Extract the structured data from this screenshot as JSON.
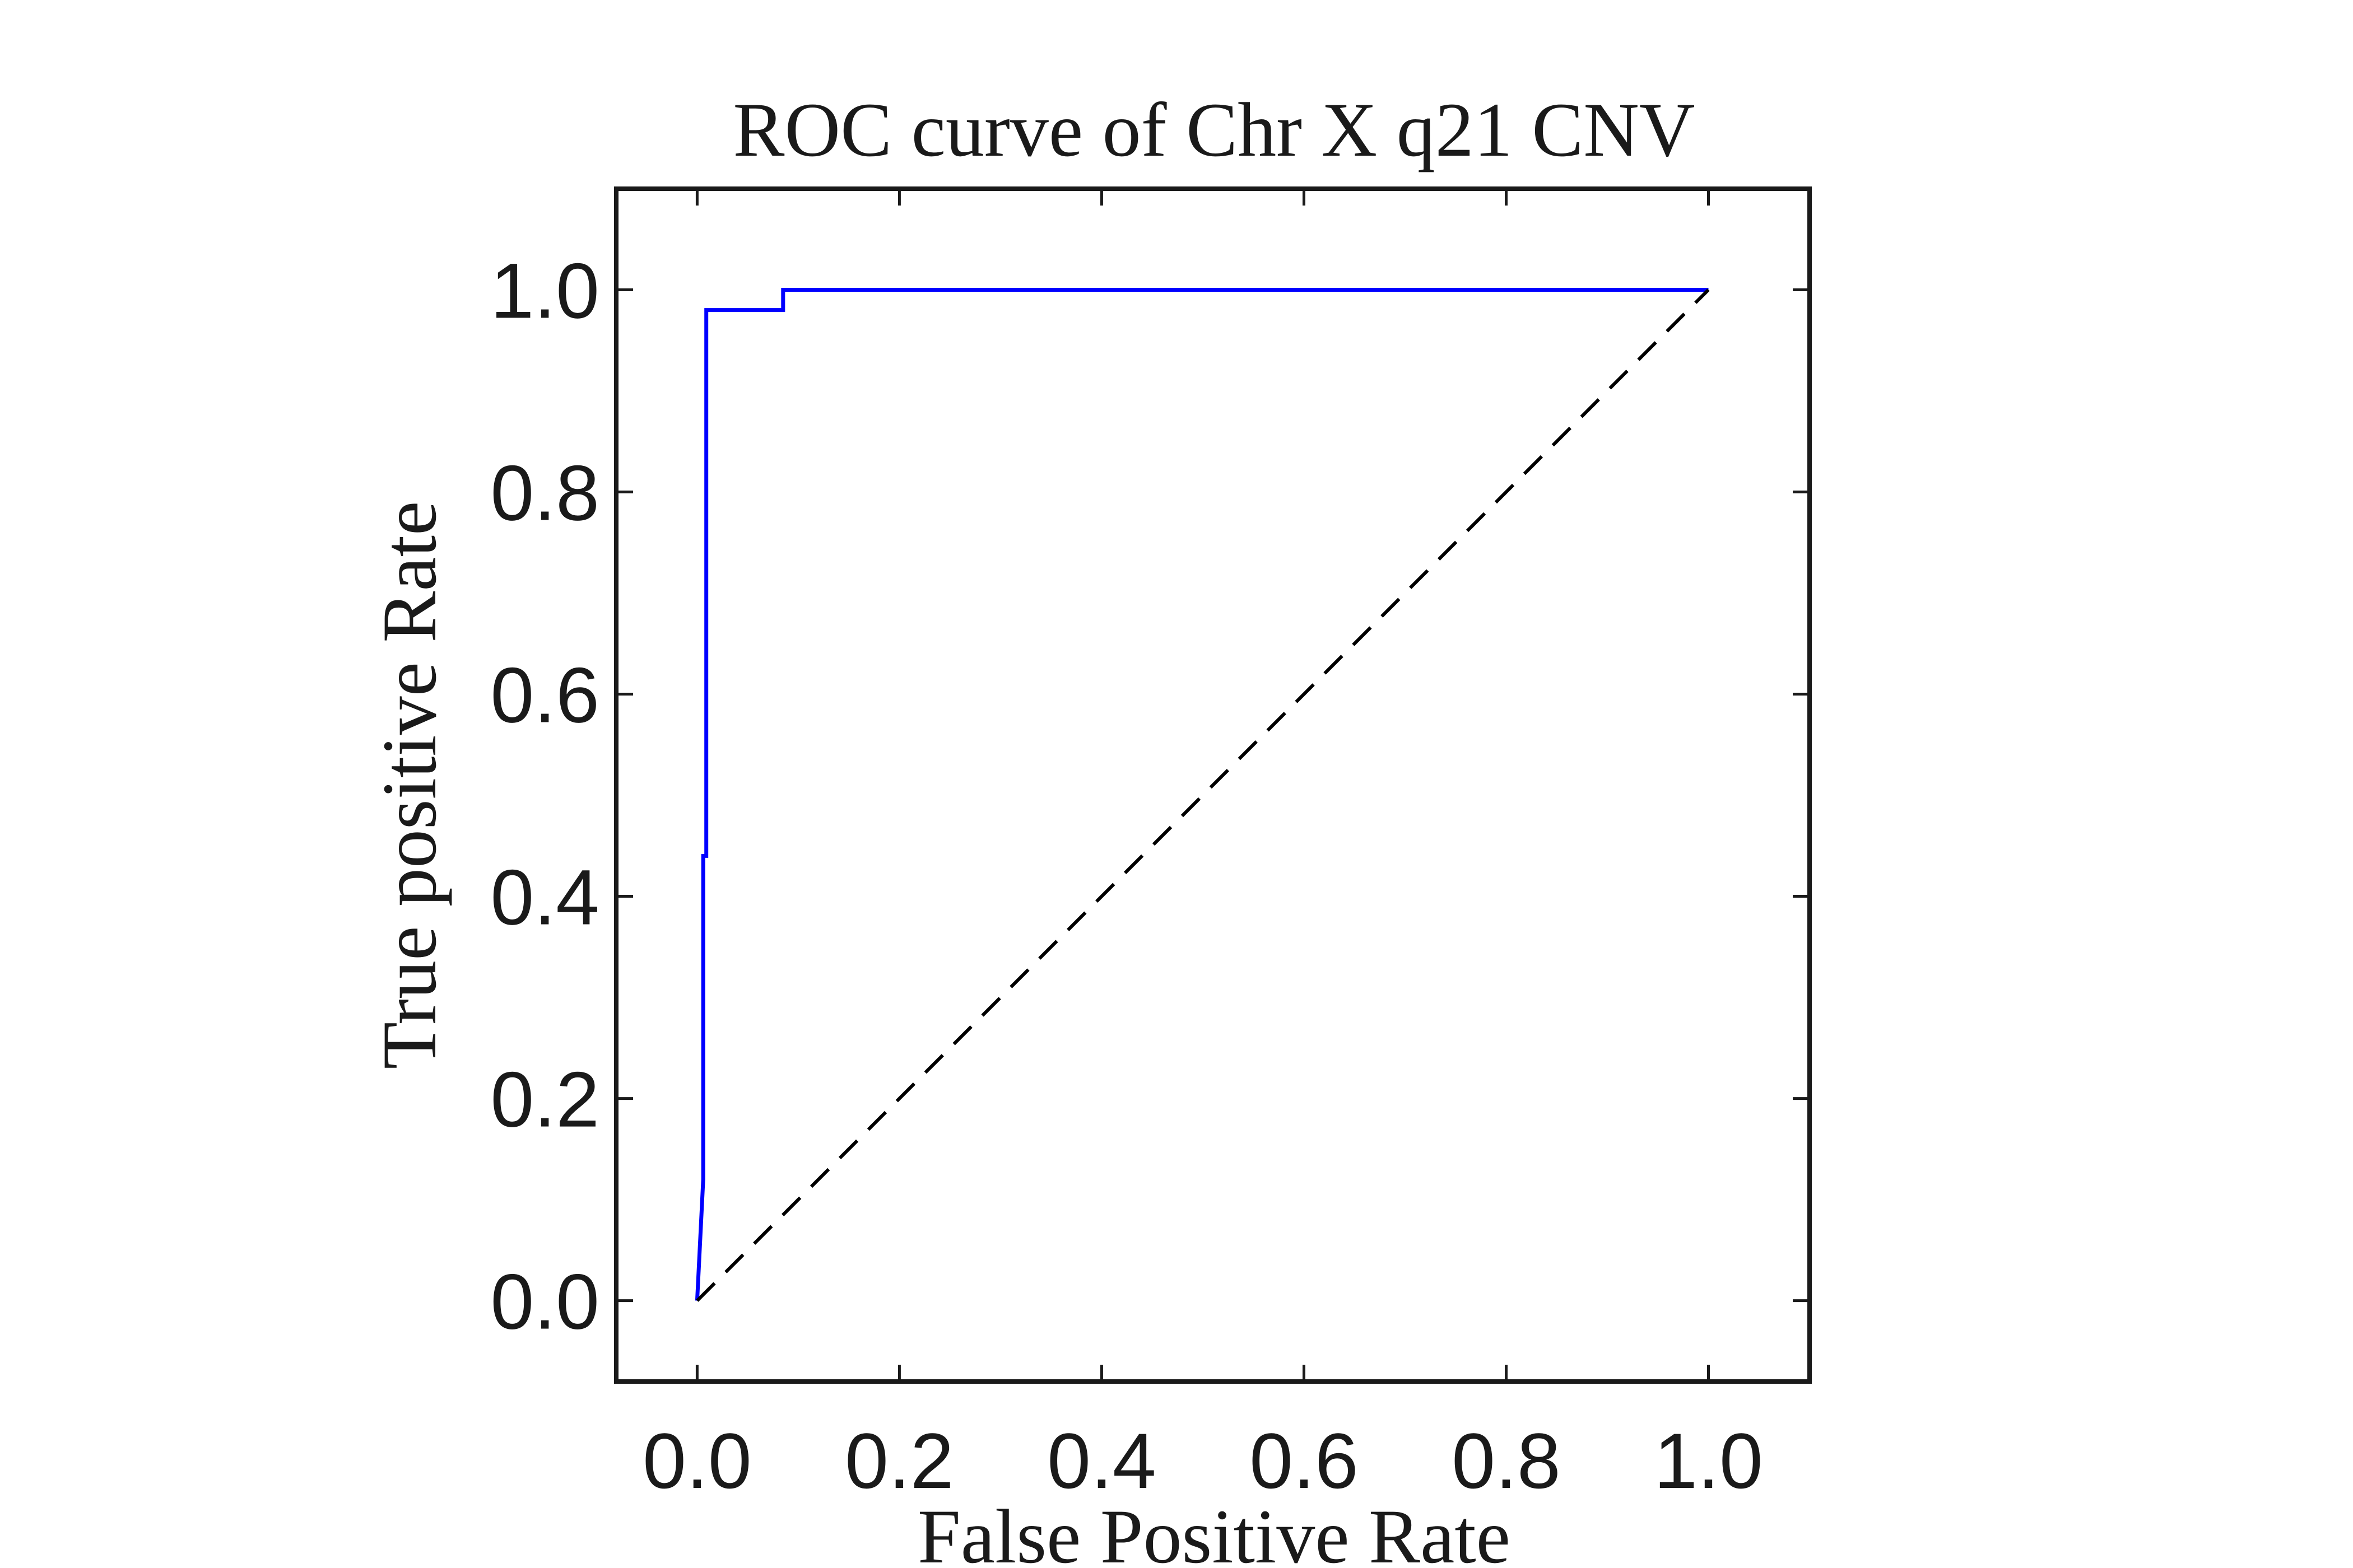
{
  "chart_data": {
    "type": "line",
    "title": "ROC curve of Chr X q21 CNV",
    "xlabel": "False Positive Rate",
    "ylabel": "True positive Rate",
    "xlim": [
      -0.08,
      1.1
    ],
    "ylim": [
      -0.08,
      1.1
    ],
    "x_ticks": [
      0.0,
      0.2,
      0.4,
      0.6,
      0.8,
      1.0
    ],
    "y_ticks": [
      0.0,
      0.2,
      0.4,
      0.6,
      0.8,
      1.0
    ],
    "x_tick_labels": [
      "0.0",
      "0.2",
      "0.4",
      "0.6",
      "0.8",
      "1.0"
    ],
    "y_tick_labels": [
      "0.0",
      "0.2",
      "0.4",
      "0.6",
      "0.8",
      "1.0"
    ],
    "grid": false,
    "legend": "none",
    "series": [
      {
        "style": "solid",
        "color": "#0000ff",
        "x": [
          0.0,
          0.006,
          0.006,
          0.009,
          0.009,
          0.012,
          0.085,
          0.085,
          1.0
        ],
        "y": [
          0.0,
          0.12,
          0.44,
          0.44,
          0.98,
          0.98,
          0.98,
          1.0,
          1.0
        ]
      },
      {
        "style": "dashed",
        "color": "#000000",
        "x": [
          0.0,
          1.0
        ],
        "y": [
          0.0,
          1.0
        ]
      }
    ]
  }
}
